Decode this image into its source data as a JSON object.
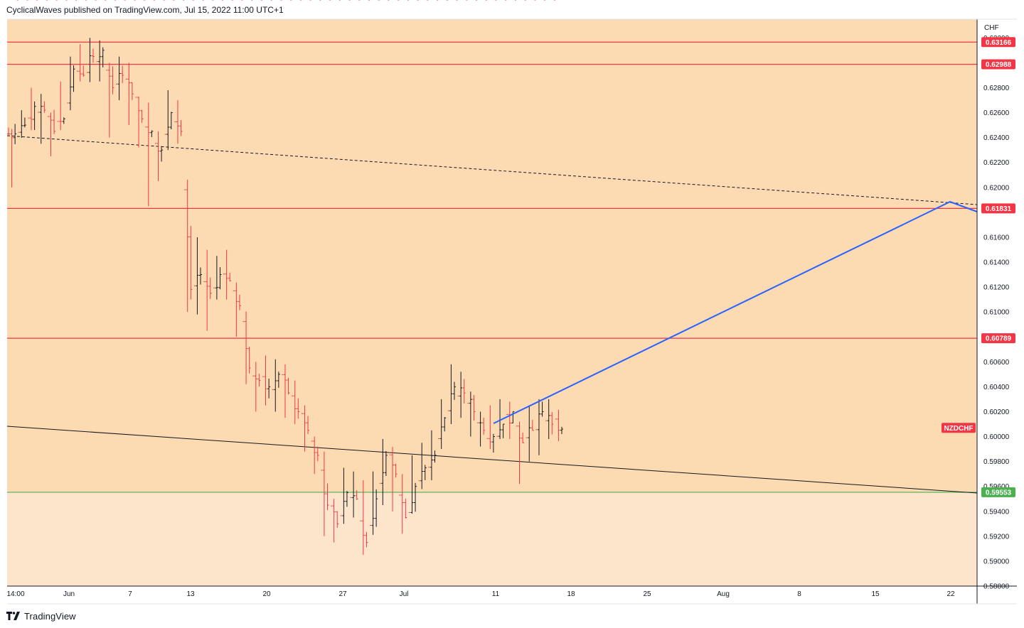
{
  "header": {
    "published_text": "CyclicalWaves published on TradingView.com, Jul 15, 2022 11:00 UTC+1"
  },
  "footer": {
    "brand": "TradingView",
    "logo_icon": "tradingview-logo-icon"
  },
  "chart_data": {
    "type": "ohlc",
    "symbol": "NZDCHF",
    "currency": "CHF",
    "ylim": [
      0.588,
      0.6335
    ],
    "y_ticks": [
      "0.63200",
      "0.62800",
      "0.62600",
      "0.62400",
      "0.62200",
      "0.62000",
      "0.61600",
      "0.61400",
      "0.61200",
      "0.61000",
      "0.60600",
      "0.60400",
      "0.60200",
      "0.60000",
      "0.59800",
      "0.59600",
      "0.59400",
      "0.59200",
      "0.59000",
      "0.58800"
    ],
    "x_tick_labels": [
      "14:00",
      "Jun",
      "7",
      "13",
      "20",
      "27",
      "Jul",
      "11",
      "18",
      "25",
      "Aug",
      "8",
      "15",
      "22"
    ],
    "horizontal_levels": [
      {
        "value": 0.63166,
        "label": "0.63166",
        "color": "#f23645"
      },
      {
        "value": 0.62988,
        "label": "0.62988",
        "color": "#f23645"
      },
      {
        "value": 0.61831,
        "label": "0.61831",
        "color": "#f23645"
      },
      {
        "value": 0.60789,
        "label": "0.60789",
        "color": "#f23645"
      },
      {
        "value": 0.59553,
        "label": "0.59553",
        "color": "#4caf50"
      }
    ],
    "symbol_tag": {
      "value": 0.6007,
      "color": "#f23645"
    },
    "colors": {
      "upper_zone": "#fddbb2",
      "lower_zone": "#fde5cc",
      "bull_bar": "#131722",
      "bear_bar": "#f23645",
      "projection": "#2962ff",
      "dashed_trend": "#131722",
      "solid_trend": "#131722"
    },
    "price_path": [
      [
        0.6243,
        0.6215,
        0.62
      ],
      [
        0.625,
        0.6262,
        0.624
      ],
      [
        0.6265,
        0.628,
        0.626
      ],
      [
        0.6262,
        0.6275,
        0.6235
      ],
      [
        0.6245,
        0.626,
        0.6225
      ],
      [
        0.6255,
        0.6285,
        0.625
      ],
      [
        0.6295,
        0.6305,
        0.627
      ],
      [
        0.629,
        0.6315,
        0.6285
      ],
      [
        0.6305,
        0.632,
        0.629
      ],
      [
        0.631,
        0.6318,
        0.6285
      ],
      [
        0.628,
        0.63,
        0.624
      ],
      [
        0.629,
        0.6305,
        0.627
      ],
      [
        0.6275,
        0.63,
        0.625
      ],
      [
        0.6255,
        0.6272,
        0.6232
      ],
      [
        0.6245,
        0.6268,
        0.6185
      ],
      [
        0.623,
        0.6245,
        0.6205
      ],
      [
        0.626,
        0.6278,
        0.623
      ],
      [
        0.6245,
        0.627,
        0.6235
      ],
      [
        0.6118,
        0.6165,
        0.61
      ],
      [
        0.613,
        0.616,
        0.6098
      ],
      [
        0.6115,
        0.615,
        0.6085
      ],
      [
        0.613,
        0.6145,
        0.611
      ],
      [
        0.6125,
        0.615,
        0.611
      ],
      [
        0.6105,
        0.612,
        0.608
      ],
      [
        0.6055,
        0.6075,
        0.6042
      ],
      [
        0.6045,
        0.606,
        0.602
      ],
      [
        0.604,
        0.6065,
        0.6025
      ],
      [
        0.605,
        0.6062,
        0.602
      ],
      [
        0.6035,
        0.6058,
        0.6015
      ],
      [
        0.602,
        0.6045,
        0.601
      ],
      [
        0.6005,
        0.6025,
        0.5988
      ],
      [
        0.5985,
        0.6,
        0.597
      ],
      [
        0.5945,
        0.5988,
        0.592
      ],
      [
        0.593,
        0.595,
        0.5915
      ],
      [
        0.5955,
        0.5975,
        0.593
      ],
      [
        0.595,
        0.5972,
        0.5935
      ],
      [
        0.5915,
        0.5965,
        0.5905
      ],
      [
        0.595,
        0.5972,
        0.5935
      ],
      [
        0.5985,
        0.5998,
        0.5945
      ],
      [
        0.597,
        0.5985,
        0.594
      ],
      [
        0.5935,
        0.597,
        0.5922
      ],
      [
        0.596,
        0.5985,
        0.595
      ],
      [
        0.5975,
        0.5995,
        0.5958
      ],
      [
        0.5985,
        0.6005,
        0.5965
      ],
      [
        0.6015,
        0.603,
        0.599
      ],
      [
        0.604,
        0.6058,
        0.601
      ],
      [
        0.6035,
        0.6052,
        0.6015
      ],
      [
        0.602,
        0.6035,
        0.6
      ],
      [
        0.6005,
        0.602,
        0.5992
      ],
      [
        0.6,
        0.6025,
        0.599
      ],
      [
        0.601,
        0.603,
        0.5998
      ],
      [
        0.602,
        0.6028,
        0.5998
      ],
      [
        0.5995,
        0.6012,
        0.5962
      ],
      [
        0.6005,
        0.6025,
        0.598
      ],
      [
        0.602,
        0.603,
        0.5985
      ],
      [
        0.601,
        0.603,
        0.5998
      ],
      [
        0.6006,
        0.6018,
        0.6
      ]
    ]
  }
}
